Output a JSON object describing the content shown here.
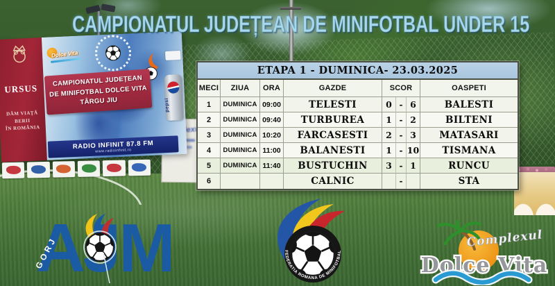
{
  "title": "CAMPIONATUL JUDEȚEAN DE MINIFOTBAL UNDER 15",
  "fixture_table": {
    "etapa_header": "ETAPA 1 - DUMINICA- 23.03.2025",
    "columns": [
      "MECI",
      "ZIUA",
      "ORA",
      "GAZDE",
      "SCOR",
      "OASPETI"
    ],
    "rows": [
      [
        "1",
        "DUMINICA",
        "09:00",
        "TELESTI",
        "0",
        "-",
        "6",
        "BALESTI"
      ],
      [
        "2",
        "DUMINICA",
        "09:40",
        "TURBUREA",
        "1",
        "-",
        "2",
        "BILTENI"
      ],
      [
        "3",
        "DUMINICA",
        "10:20",
        "FARCASESTI",
        "2",
        "-",
        "3",
        "MATASARI"
      ],
      [
        "4",
        "DUMINICA",
        "11:00",
        "BALANESTI",
        "1",
        "-",
        "10",
        "TISMANA"
      ],
      [
        "5",
        "DUMINICA",
        "11:40",
        "BUSTUCHIN",
        "3",
        "-",
        "1",
        "RUNCU"
      ],
      [
        "6",
        "",
        "",
        "CALNIC",
        "",
        "-",
        "",
        "STA"
      ]
    ]
  },
  "photo": {
    "banner": {
      "ursus_name": "URSUS",
      "ursus_slogan_lines": [
        "DĂM VIAȚĂ",
        "BERII",
        "ÎN ROMÂNIA"
      ],
      "ribbon_lines": [
        "CAMPIONATUL JUDEȚEAN",
        "DE MINIFOTBAL DOLCE VITA",
        "TÂRGU JIU"
      ],
      "radio_text": "RADIO INFINIT 87.8 FM",
      "radio_url": "www.radioinfinit.ro",
      "dolce_vita_mini": "Dolce Vita",
      "pepsi_label": "pepsi"
    },
    "side_board_text": "Complexul"
  },
  "logos": {
    "ajm": {
      "letters": "AJM",
      "county": "GORJ"
    },
    "frm": {
      "ring_text": "FEDERATIA ROMANA DE MINIFOTBAL"
    },
    "dolce_vita": {
      "line1": "Complexul",
      "line2": "Dolce Vita"
    }
  },
  "colors": {
    "title_blue": "#a9d7ec",
    "table_header_bg": "#a9c6de",
    "ribbon_red": "#a02a40",
    "ajm_blue": "#1b5ba4",
    "field_green": "#4d7a3c"
  }
}
